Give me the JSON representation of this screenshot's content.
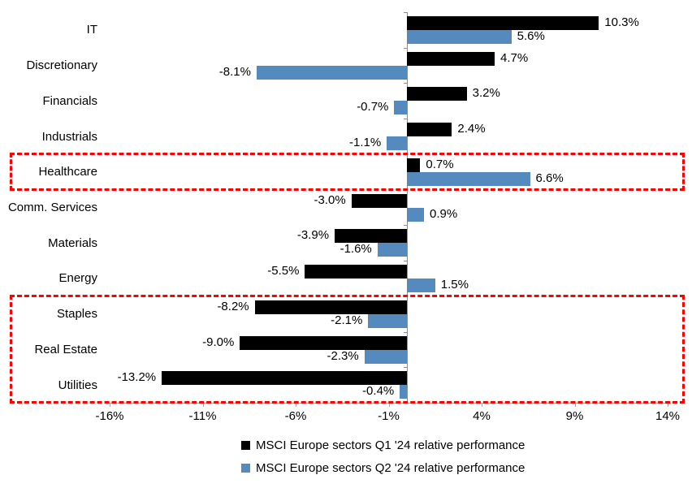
{
  "chart_data": {
    "type": "bar",
    "orientation": "horizontal",
    "title": "",
    "categories": [
      "IT",
      "Discretionary",
      "Financials",
      "Industrials",
      "Healthcare",
      "Comm. Services",
      "Materials",
      "Energy",
      "Staples",
      "Real Estate",
      "Utilities"
    ],
    "series": [
      {
        "name": "MSCI Europe sectors Q1 '24 relative performance",
        "color": "#000000",
        "values": [
          10.3,
          4.7,
          3.2,
          2.4,
          0.7,
          -3.0,
          -3.9,
          -5.5,
          -8.2,
          -9.0,
          -13.2
        ],
        "labels": [
          "10.3%",
          "4.7%",
          "3.2%",
          "2.4%",
          "0.7%",
          "-3.0%",
          "-3.9%",
          "-5.5%",
          "-8.2%",
          "-9.0%",
          "-13.2%"
        ]
      },
      {
        "name": "MSCI Europe sectors Q2 '24 relative performance",
        "color": "#558ABE",
        "values": [
          5.6,
          -8.1,
          -0.7,
          -1.1,
          6.6,
          0.9,
          -1.6,
          1.5,
          -2.1,
          -2.3,
          -0.4
        ],
        "labels": [
          "5.6%",
          "-8.1%",
          "-0.7%",
          "-1.1%",
          "6.6%",
          "0.9%",
          "-1.6%",
          "1.5%",
          "-2.1%",
          "-2.3%",
          "-0.4%"
        ]
      }
    ],
    "xlim": [
      -16,
      14
    ],
    "x_ticks": [
      {
        "value": -16,
        "label": "-16%"
      },
      {
        "value": -11,
        "label": "-11%"
      },
      {
        "value": -6,
        "label": "-6%"
      },
      {
        "value": -1,
        "label": "-1%"
      },
      {
        "value": 4,
        "label": "4%"
      },
      {
        "value": 9,
        "label": "9%"
      },
      {
        "value": 14,
        "label": "14%"
      }
    ],
    "grid": false,
    "legend_position": "bottom",
    "axis_color": "#8C8C8C",
    "baseline_color": "#A6A6A6",
    "highlight_color": "#FF0000",
    "highlights": [
      {
        "name": "healthcare-highlight",
        "start_row": 4,
        "end_row": 4
      },
      {
        "name": "defensive-sectors-highlight",
        "start_row": 8,
        "end_row": 10
      }
    ]
  }
}
